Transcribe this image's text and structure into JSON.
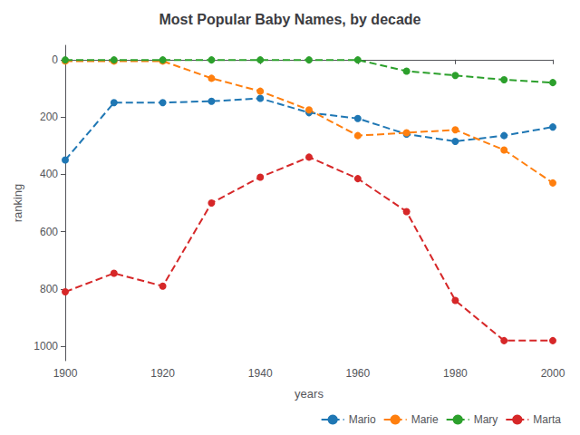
{
  "chart_data": {
    "type": "line",
    "title": "Most Popular Baby Names, by decade",
    "xlabel": "years",
    "ylabel": "ranking",
    "x": [
      1900,
      1910,
      1920,
      1930,
      1940,
      1950,
      1960,
      1970,
      1980,
      1990,
      2000
    ],
    "series": [
      {
        "name": "Mario",
        "color": "#1f77b4",
        "values": [
          350,
          150,
          150,
          145,
          135,
          185,
          205,
          260,
          285,
          265,
          235
        ]
      },
      {
        "name": "Marie",
        "color": "#ff7f0e",
        "values": [
          5,
          5,
          5,
          65,
          110,
          175,
          265,
          255,
          245,
          315,
          430
        ]
      },
      {
        "name": "Mary",
        "color": "#2ca02c",
        "values": [
          1,
          1,
          1,
          1,
          1,
          1,
          1,
          40,
          55,
          70,
          80
        ]
      },
      {
        "name": "Marta",
        "color": "#d62728",
        "values": [
          810,
          745,
          790,
          500,
          410,
          340,
          415,
          530,
          840,
          980,
          980
        ]
      }
    ],
    "xlim": [
      1900,
      2000
    ],
    "xticks": [
      1900,
      1920,
      1940,
      1960,
      1980,
      2000
    ],
    "ylim": [
      1050,
      -50
    ],
    "yticks": [
      0,
      200,
      400,
      600,
      800,
      1000
    ],
    "marker": "circle",
    "line_style": "dashed",
    "legend": "lower right",
    "grid": false
  }
}
